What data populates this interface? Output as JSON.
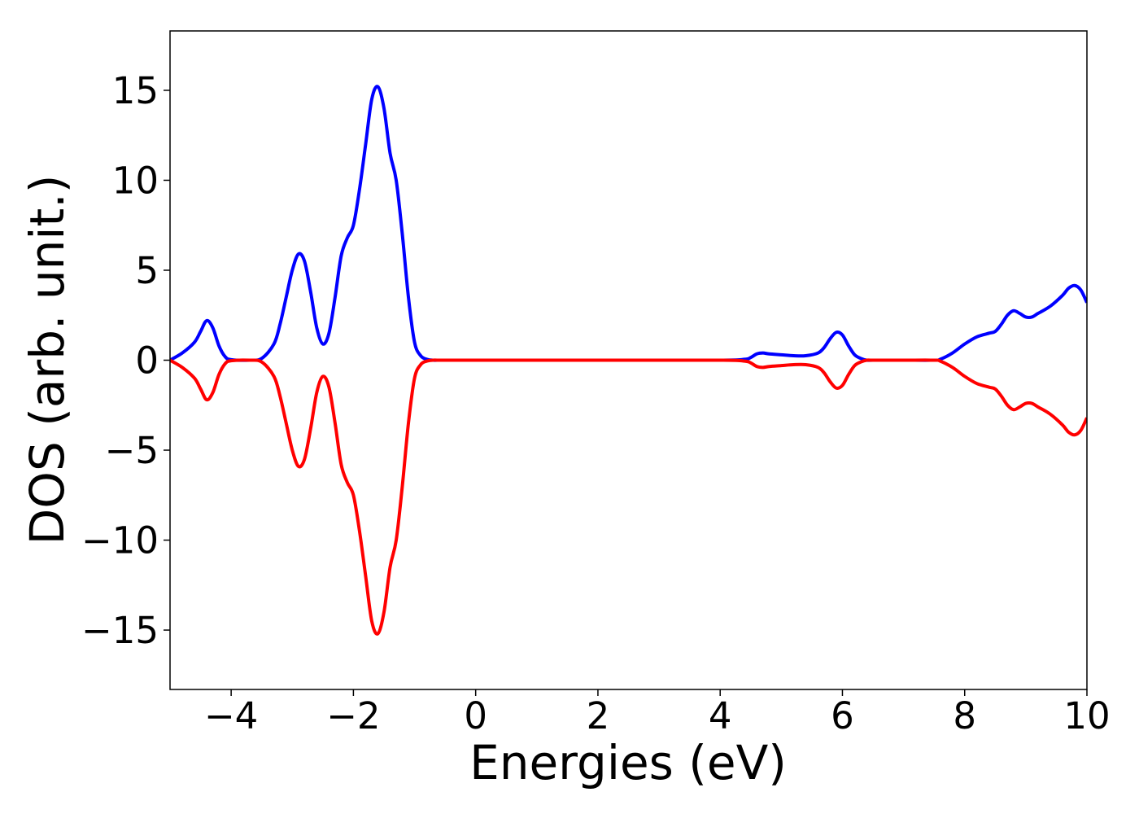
{
  "chart_data": {
    "type": "line",
    "title": "",
    "xlabel": "Energies (eV)",
    "ylabel": "DOS (arb. unit.)",
    "xlim": [
      -5,
      10
    ],
    "ylim": [
      -18.3,
      18.3
    ],
    "xticks": [
      -4,
      -2,
      0,
      2,
      4,
      6,
      8,
      10
    ],
    "yticks": [
      -15,
      -10,
      -5,
      0,
      5,
      10,
      15
    ],
    "xtick_labels": [
      "−4",
      "−2",
      "0",
      "2",
      "4",
      "6",
      "8",
      "10"
    ],
    "ytick_labels": [
      "−15",
      "−10",
      "−5",
      "0",
      "5",
      "10",
      "15"
    ],
    "grid": false,
    "series": [
      {
        "color": "#0000ff",
        "x": [
          -5.0,
          -4.8,
          -4.6,
          -4.5,
          -4.4,
          -4.3,
          -4.2,
          -4.1,
          -4.0,
          -3.7,
          -3.5,
          -3.3,
          -3.2,
          -3.1,
          -3.0,
          -2.9,
          -2.8,
          -2.7,
          -2.6,
          -2.5,
          -2.4,
          -2.3,
          -2.2,
          -2.1,
          -2.0,
          -1.9,
          -1.8,
          -1.7,
          -1.6,
          -1.5,
          -1.4,
          -1.3,
          -1.2,
          -1.1,
          -1.0,
          -0.9,
          -0.8,
          -0.7,
          -0.6,
          -0.5,
          0.0,
          2.0,
          4.0,
          4.4,
          4.5,
          4.6,
          4.7,
          4.8,
          5.0,
          5.2,
          5.4,
          5.6,
          5.7,
          5.8,
          5.9,
          6.0,
          6.1,
          6.2,
          6.3,
          6.4,
          6.5,
          7.0,
          7.5,
          7.6,
          7.8,
          8.0,
          8.2,
          8.4,
          8.5,
          8.6,
          8.7,
          8.8,
          8.9,
          9.0,
          9.1,
          9.2,
          9.4,
          9.6,
          9.7,
          9.8,
          9.9,
          10.0
        ],
        "values": [
          0.0,
          0.4,
          1.0,
          1.6,
          2.2,
          1.8,
          0.8,
          0.2,
          0.03,
          0.0,
          0.1,
          0.9,
          2.0,
          3.5,
          5.0,
          5.9,
          5.5,
          3.8,
          1.8,
          0.9,
          1.5,
          3.5,
          5.8,
          6.8,
          7.5,
          9.5,
          12.0,
          14.5,
          15.2,
          14.0,
          11.5,
          10.0,
          7.0,
          3.5,
          1.0,
          0.25,
          0.05,
          0.0,
          0.0,
          0.0,
          0.0,
          0.0,
          0.0,
          0.05,
          0.15,
          0.35,
          0.4,
          0.35,
          0.3,
          0.25,
          0.25,
          0.4,
          0.7,
          1.2,
          1.55,
          1.4,
          0.8,
          0.3,
          0.1,
          0.0,
          0.0,
          0.0,
          0.0,
          0.05,
          0.4,
          0.9,
          1.3,
          1.5,
          1.6,
          2.0,
          2.5,
          2.75,
          2.6,
          2.4,
          2.4,
          2.6,
          3.0,
          3.6,
          4.0,
          4.15,
          3.9,
          3.2
        ]
      },
      {
        "color": "#ff0000",
        "x": [
          -5.0,
          -4.8,
          -4.6,
          -4.5,
          -4.4,
          -4.3,
          -4.2,
          -4.1,
          -4.0,
          -3.7,
          -3.5,
          -3.3,
          -3.2,
          -3.1,
          -3.0,
          -2.9,
          -2.8,
          -2.7,
          -2.6,
          -2.5,
          -2.4,
          -2.3,
          -2.2,
          -2.1,
          -2.0,
          -1.9,
          -1.8,
          -1.7,
          -1.6,
          -1.5,
          -1.4,
          -1.3,
          -1.2,
          -1.1,
          -1.0,
          -0.9,
          -0.8,
          -0.7,
          -0.6,
          -0.5,
          0.0,
          2.0,
          4.0,
          4.4,
          4.5,
          4.6,
          4.7,
          4.8,
          5.0,
          5.2,
          5.4,
          5.6,
          5.7,
          5.8,
          5.9,
          6.0,
          6.1,
          6.2,
          6.3,
          6.4,
          6.5,
          7.0,
          7.5,
          7.6,
          7.8,
          8.0,
          8.2,
          8.4,
          8.5,
          8.6,
          8.7,
          8.8,
          8.9,
          9.0,
          9.1,
          9.2,
          9.4,
          9.6,
          9.7,
          9.8,
          9.9,
          10.0
        ],
        "values": [
          0.0,
          -0.4,
          -1.0,
          -1.6,
          -2.2,
          -1.8,
          -0.8,
          -0.2,
          -0.03,
          0.0,
          -0.1,
          -0.9,
          -2.0,
          -3.5,
          -5.0,
          -5.9,
          -5.5,
          -3.8,
          -1.8,
          -0.9,
          -1.5,
          -3.5,
          -5.8,
          -6.8,
          -7.5,
          -9.5,
          -12.0,
          -14.5,
          -15.2,
          -14.0,
          -11.5,
          -10.0,
          -7.0,
          -3.5,
          -1.0,
          -0.25,
          -0.05,
          0.0,
          0.0,
          0.0,
          0.0,
          0.0,
          0.0,
          -0.05,
          -0.15,
          -0.35,
          -0.4,
          -0.35,
          -0.3,
          -0.25,
          -0.25,
          -0.4,
          -0.7,
          -1.2,
          -1.55,
          -1.4,
          -0.8,
          -0.3,
          -0.1,
          0.0,
          0.0,
          0.0,
          0.0,
          -0.05,
          -0.4,
          -0.9,
          -1.3,
          -1.5,
          -1.6,
          -2.0,
          -2.5,
          -2.75,
          -2.6,
          -2.4,
          -2.4,
          -2.6,
          -3.0,
          -3.6,
          -4.0,
          -4.15,
          -3.9,
          -3.2
        ]
      }
    ]
  }
}
